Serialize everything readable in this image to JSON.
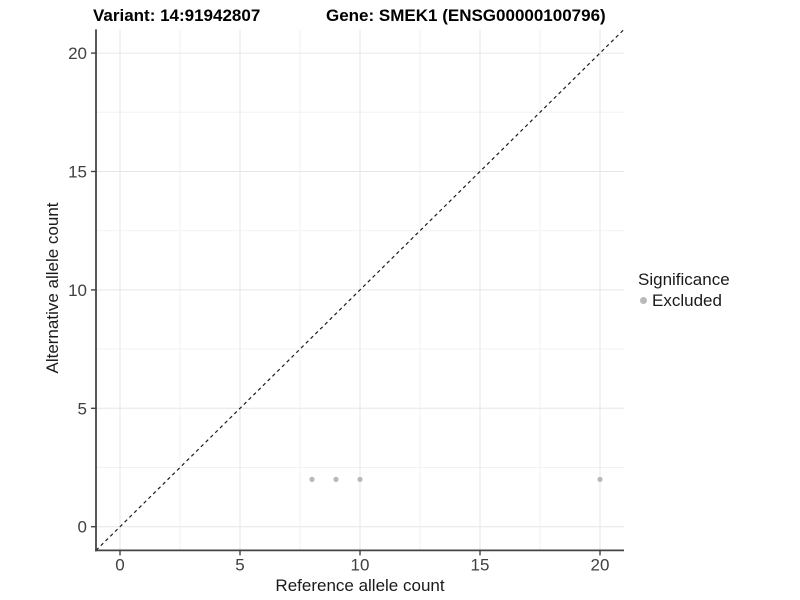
{
  "titles": {
    "variant": "Variant: 14:91942807",
    "gene": "Gene: SMEK1 (ENSG00000100796)"
  },
  "legend": {
    "title": "Significance",
    "position": "right",
    "items": [
      {
        "label": "Excluded",
        "color": "#b9b9b9"
      }
    ]
  },
  "colors": {
    "background": "#ffffff",
    "point": "#b9b9b9",
    "grid_major": "#e6e6e6",
    "grid_minor": "#f2f2f2",
    "axis_line": "#454545",
    "tick_mark": "#454545",
    "tick_label": "#404040",
    "reference_line": "#1c1c1c"
  },
  "chart_data": {
    "type": "scatter",
    "title_left": "Variant: 14:91942807",
    "title_right": "Gene: SMEK1 (ENSG00000100796)",
    "xlabel": "Reference allele count",
    "ylabel": "Alternative allele count",
    "xlim": [
      -1,
      21
    ],
    "ylim": [
      -1,
      21
    ],
    "x_ticks": [
      0,
      5,
      10,
      15,
      20
    ],
    "y_ticks": [
      0,
      5,
      10,
      15,
      20
    ],
    "x_minor_ticks": [
      2.5,
      7.5,
      12.5,
      17.5
    ],
    "y_minor_ticks": [
      2.5,
      7.5,
      12.5,
      17.5
    ],
    "grid": true,
    "legend_position": "right",
    "series": [
      {
        "name": "Excluded",
        "color": "#b9b9b9",
        "point_radius": 2.6,
        "points": [
          [
            8,
            2
          ],
          [
            9,
            2
          ],
          [
            10,
            2
          ],
          [
            20,
            2
          ]
        ]
      }
    ],
    "reference_line": {
      "description": "identity line y = x",
      "from": [
        -1,
        -1
      ],
      "to": [
        21,
        21
      ],
      "style": "dashed",
      "color": "#1c1c1c"
    }
  }
}
